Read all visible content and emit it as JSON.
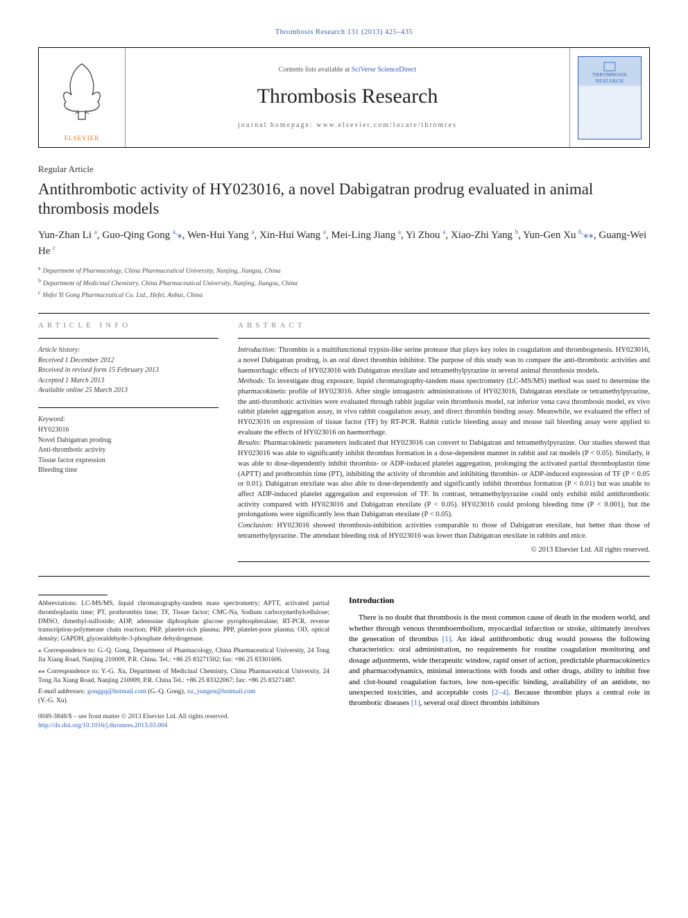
{
  "running_head": "Thrombosis Research 131 (2013) 425–435",
  "masthead": {
    "publisher_label": "ELSEVIER",
    "contents_prefix": "Contents lists available at ",
    "contents_link": "SciVerse ScienceDirect",
    "journal_name": "Thrombosis Research",
    "homepage_label": "journal homepage: ",
    "homepage_url": "www.elsevier.com/locate/thromres",
    "cover_line1": "THROMBOSIS",
    "cover_line2": "RESEARCH"
  },
  "article_type": "Regular Article",
  "title": "Antithrombotic activity of HY023016, a novel Dabigatran prodrug evaluated in animal thrombosis models",
  "authors_html": "Yun-Zhan Li <sup>a</sup>, Guo-Qing Gong <sup>a,</sup><span class='star'>⁎</span>, Wen-Hui Yang <sup>a</sup>, Xin-Hui Wang <sup>a</sup>, Mei-Ling Jiang <sup>a</sup>, Yi Zhou <sup>a</sup>, Xiao-Zhi Yang <sup>b</sup>, Yun-Gen Xu <sup>b,</sup><span class='star'>⁎⁎</span>, Guang-Wei He <sup>c</sup>",
  "affiliations": [
    {
      "mark": "a",
      "text": "Department of Pharmacology, China Pharmaceutical University, Nanjing, Jiangsu, China"
    },
    {
      "mark": "b",
      "text": "Department of Medicinal Chemistry, China Pharmaceutical University, Nanjing, Jiangsu, China"
    },
    {
      "mark": "c",
      "text": "Hefei Yi Gong Pharmaceutical Co. Ltd., Hefei, Anhui, China"
    }
  ],
  "article_info_head": "ARTICLE INFO",
  "abstract_head": "ABSTRACT",
  "history": {
    "label": "Article history:",
    "received": "Received 1 December 2012",
    "revised": "Received in revised form 15 February 2013",
    "accepted": "Accepted 1 March 2013",
    "online": "Available online 25 March 2013"
  },
  "keywords": {
    "label": "Keyword:",
    "items": [
      "HY023016",
      "Novel Dabigatran prodrug",
      "Anti-thrombotic activity",
      "Tissue factor expression",
      "Bleeding time"
    ]
  },
  "abstract": {
    "intro_label": "Introduction:",
    "intro": "Thrombin is a multifunctional trypsin-like serine protease that plays key roles in coagulation and thrombogenesis. HY023016, a novel Dabigatran prodrug, is an oral direct thrombin inhibitor. The purpose of this study was to compare the anti-thrombotic activities and haemorrhagic effects of HY023016 with Dabigatran etexilate and tetramethylpyrazine in several animal thrombosis models.",
    "methods_label": "Methods:",
    "methods": "To investigate drug exposure, liquid chromatography-tandem mass spectrometry (LC-MS/MS) method was used to determine the pharmacokinetic profile of HY023016. After single intragastric administrations of HY023016, Dabigatran etexilate or tetramethylpyrazine, the anti-thrombotic activities were evaluated through rabbit jugular vein thrombosis model, rat inferior vena cava thrombosis model, ex vivo rabbit platelet aggregation assay, in vivo rabbit coagulation assay, and direct thrombin binding assay. Meanwhile, we evaluated the effect of HY023016 on expression of tissue factor (TF) by RT-PCR. Rabbit cuticle bleeding assay and mouse tail bleeding assay were applied to evaluate the effects of HY023016 on haemorrhage.",
    "results_label": "Results:",
    "results": "Pharmacokinetic parameters indicated that HY023016 can convert to Dabigatran and tetramethylpyrazine. Our studies showed that HY023016 was able to significantly inhibit thrombus formation in a dose-dependent manner in rabbit and rat models (P < 0.05). Similarly, it was able to dose-dependently inhibit thrombin- or ADP-induced platelet aggregation, prolonging the activated partial thromboplastin time (APTT) and prothrombin time (PT), inhibiting the activity of thrombin and inhibiting thrombin- or ADP-induced expression of TF (P < 0.05 or 0.01). Dabigatran etexilate was also able to dose-dependently and significantly inhibit thrombus formation (P < 0.01) but was unable to affect ADP-induced platelet aggregation and expression of TF. In contrast, tetramethylpyrazine could only exhibit mild antithrombotic activity compared with HY023016 and Dabigatran etexilate (P < 0.05). HY023016 could prolong bleeding time (P < 0.001), but the prolongations were significantly less than Dabigatran etexilate (P < 0.05).",
    "conclusion_label": "Conclusion:",
    "conclusion": "HY023016 showed thrombosis-inhibition activities comparable to those of Dabigatran etexilate, but better than those of tetramethylpyrazine. The attendant bleeding risk of HY023016 was lower than Dabigatran etexilate in rabbits and mice.",
    "copyright": "© 2013 Elsevier Ltd. All rights reserved."
  },
  "intro_section": {
    "heading": "Introduction",
    "body_pre": "There is no doubt that thrombosis is the most common cause of death in the modern world, and whether through venous thromboembolism, myocardial infarction or stroke, ultimately involves the generation of thrombus ",
    "ref1": "[1]",
    "body_mid": ". An ideal antithrombotic drug would possess the following characteristics: oral administration, no requirements for routine coagulation monitoring and dosage adjustments, wide therapeutic window, rapid onset of action, predictable pharmacokinetics and pharmacodynamics, minimal interactions with foods and other drugs, ability to inhibit free and clot-bound coagulation factors, low non-specific binding, availability of an antidote, no unexpected toxicities, and acceptable costs ",
    "ref2": "[2–4]",
    "body_post1": ". Because thrombin plays a central role in thrombotic diseases ",
    "ref3": "[1]",
    "body_post2": ", several oral direct thrombin inhibitors"
  },
  "footnotes": {
    "abbrev_label": "Abbreviations:",
    "abbrev_text": " LC-MS/MS, liquid chromatography-tandem mass spectrometry; APTT, activated partial thromboplastin time; PT, prothrombin time; TF, Tissue factor; CMC-Na, Sodium carboxymethylcellulose; DMSO, dimethyl-sulfoxide; ADP, adenosine diphosphate glucose pyrophospheralase; RT-PCR, reverse transcription-polymerase chain reaction; PRP, platelet-rich plasma; PPP, platelet-poor plasma; OD, optical density; GAPDH, glyceraldehyde-3-phosphate dehydrogenase.",
    "corr1_mark": "⁎",
    "corr1_text": " Correspondence to: G.-Q. Gong, Department of Pharmacology, China Pharmaceutical University, 24 Tong Jia Xiang Road, Nanjing 210009, P.R. China. Tel.: +86 25 83271502; fax: +86 25 83301606.",
    "corr2_mark": "⁎⁎",
    "corr2_text": " Correspondence to: Y.-G. Xu, Department of Medicinal Chemistry, China Pharmaceutical University, 24 Tong Jia Xiang Road, Nanjing 210009, P.R. China Tel.: +86 25 83322067; fax: +86 25 83271487.",
    "email_label": "E-mail addresses:",
    "email1": "gonggq@hotmail.com",
    "email1_who": " (G.-Q. Gong), ",
    "email2": "xu_yungen@hotmail.com",
    "email2_who": " (Y.-G. Xu)."
  },
  "doi": {
    "line1": "0049-3848/$ – see front matter © 2013 Elsevier Ltd. All rights reserved.",
    "line2": "http://dx.doi.org/10.1016/j.thromres.2013.03.004"
  },
  "colors": {
    "link": "#2b5fb0",
    "orange": "#ff6a00",
    "text": "#222222"
  }
}
